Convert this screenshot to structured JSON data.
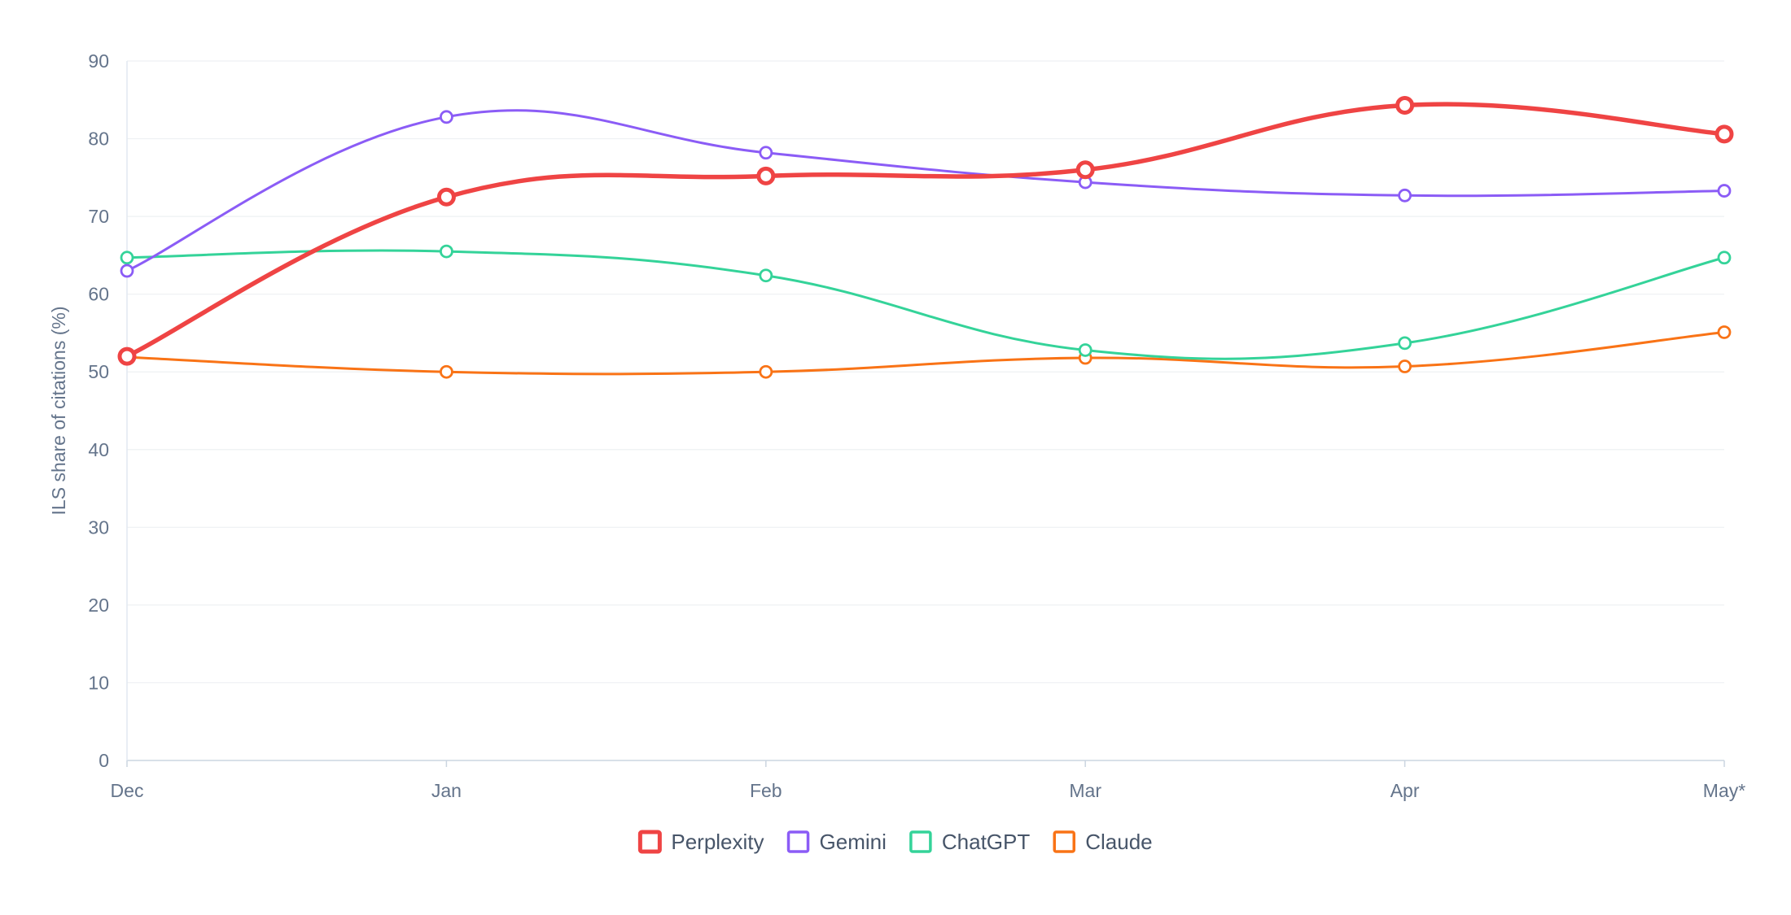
{
  "chart_data": {
    "type": "line",
    "ylabel": "ILS share of citations (%)",
    "xlabel": "",
    "categories": [
      "Dec",
      "Jan",
      "Feb",
      "Mar",
      "Apr",
      "May*"
    ],
    "ylim": [
      0,
      90
    ],
    "yticks": [
      0,
      10,
      20,
      30,
      40,
      50,
      60,
      70,
      80,
      90
    ],
    "grid": true,
    "legend_position": "bottom-center",
    "series": [
      {
        "name": "Perplexity",
        "color": "#ef4444",
        "emphasis": true,
        "values": [
          52,
          72.5,
          75.2,
          76,
          84.3,
          80.6
        ]
      },
      {
        "name": "Gemini",
        "color": "#8b5cf6",
        "emphasis": false,
        "values": [
          63,
          82.8,
          78.2,
          74.4,
          72.7,
          73.3
        ]
      },
      {
        "name": "ChatGPT",
        "color": "#34d399",
        "emphasis": false,
        "values": [
          64.7,
          65.5,
          62.4,
          52.8,
          53.7,
          64.7
        ]
      },
      {
        "name": "Claude",
        "color": "#f97316",
        "emphasis": false,
        "values": [
          51.9,
          50,
          50,
          51.8,
          50.7,
          55.1
        ]
      }
    ]
  }
}
